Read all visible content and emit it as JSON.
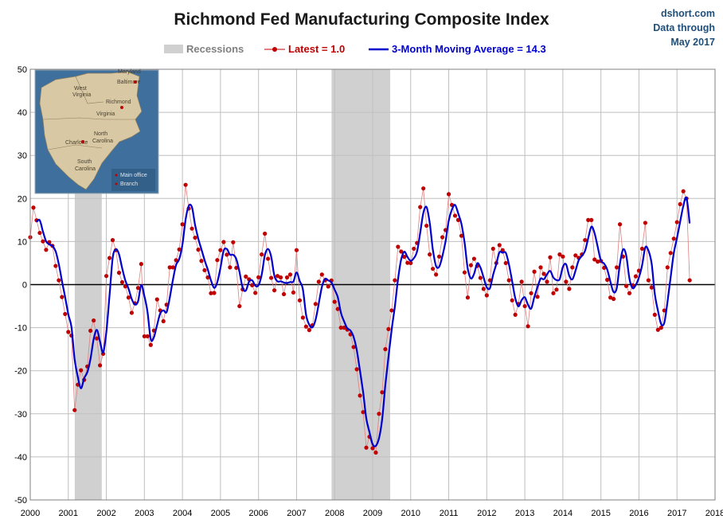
{
  "chart_data": {
    "type": "line",
    "title": "Richmond Fed Manufacturing Composite Index",
    "source": [
      "dshort.com",
      "Data through",
      "May 2017"
    ],
    "legend": {
      "recessions": "Recessions",
      "latest": "Latest = 1.0",
      "moving_average": "3-Month Moving Average = 14.3"
    },
    "xlim": [
      2000,
      2018
    ],
    "ylim": [
      -50,
      50
    ],
    "x_ticks": [
      "2000",
      "2001",
      "2002",
      "2003",
      "2004",
      "2005",
      "2006",
      "2007",
      "2008",
      "2009",
      "2010",
      "2011",
      "2012",
      "2013",
      "2014",
      "2015",
      "2016",
      "2017",
      "2018"
    ],
    "y_ticks": [
      "50",
      "40",
      "30",
      "20",
      "10",
      "0",
      "-10",
      "-20",
      "-30",
      "-40",
      "-50"
    ],
    "grid": true,
    "recessions": [
      [
        2001.17,
        2001.88
      ],
      [
        2007.92,
        2009.46
      ]
    ],
    "colors": {
      "latest": "#c00000",
      "moving_average": "#0000cc",
      "recession": "#d0d0d0",
      "zero_line": "#000000"
    },
    "anchors": [
      [
        2000.0,
        11
      ],
      [
        2000.08,
        18
      ],
      [
        2000.25,
        12
      ],
      [
        2000.42,
        8
      ],
      [
        2000.55,
        11
      ],
      [
        2000.65,
        5
      ],
      [
        2000.75,
        1
      ],
      [
        2000.9,
        -6
      ],
      [
        2001.0,
        -11
      ],
      [
        2001.1,
        -12
      ],
      [
        2001.17,
        -30
      ],
      [
        2001.3,
        -19
      ],
      [
        2001.45,
        -23
      ],
      [
        2001.55,
        -15
      ],
      [
        2001.62,
        -6
      ],
      [
        2001.7,
        -10
      ],
      [
        2001.8,
        -15
      ],
      [
        2001.88,
        -24
      ],
      [
        2002.0,
        2
      ],
      [
        2002.12,
        8
      ],
      [
        2002.2,
        12
      ],
      [
        2002.3,
        4
      ],
      [
        2002.38,
        1
      ],
      [
        2002.55,
        -1
      ],
      [
        2002.65,
        -7
      ],
      [
        2002.8,
        -3
      ],
      [
        2002.92,
        5
      ],
      [
        2003.0,
        -12
      ],
      [
        2003.1,
        -12
      ],
      [
        2003.2,
        -15
      ],
      [
        2003.35,
        -2
      ],
      [
        2003.45,
        -8
      ],
      [
        2003.55,
        -9
      ],
      [
        2003.65,
        4
      ],
      [
        2003.75,
        4
      ],
      [
        2003.9,
        7
      ],
      [
        2004.0,
        14
      ],
      [
        2004.1,
        25
      ],
      [
        2004.2,
        14
      ],
      [
        2004.3,
        12
      ],
      [
        2004.45,
        7
      ],
      [
        2004.55,
        4
      ],
      [
        2004.7,
        1
      ],
      [
        2004.8,
        -5
      ],
      [
        2004.92,
        6
      ],
      [
        2005.08,
        10
      ],
      [
        2005.25,
        4
      ],
      [
        2005.35,
        11
      ],
      [
        2005.5,
        -5
      ],
      [
        2005.65,
        2
      ],
      [
        2005.78,
        1
      ],
      [
        2005.92,
        -2
      ],
      [
        2006.05,
        4
      ],
      [
        2006.15,
        13
      ],
      [
        2006.25,
        6
      ],
      [
        2006.4,
        -2
      ],
      [
        2006.55,
        4
      ],
      [
        2006.65,
        -3
      ],
      [
        2006.8,
        4
      ],
      [
        2006.92,
        -2
      ],
      [
        2007.0,
        8
      ],
      [
        2007.1,
        -6
      ],
      [
        2007.3,
        -11
      ],
      [
        2007.45,
        -9
      ],
      [
        2007.55,
        0
      ],
      [
        2007.7,
        3
      ],
      [
        2007.8,
        -1
      ],
      [
        2007.92,
        1
      ],
      [
        2008.0,
        -4
      ],
      [
        2008.1,
        -6
      ],
      [
        2008.15,
        -10
      ],
      [
        2008.3,
        -10
      ],
      [
        2008.45,
        -12
      ],
      [
        2008.55,
        -17
      ],
      [
        2008.65,
        -25
      ],
      [
        2008.78,
        -31
      ],
      [
        2008.85,
        -40
      ],
      [
        2008.95,
        -33
      ],
      [
        2009.05,
        -43
      ],
      [
        2009.15,
        -31
      ],
      [
        2009.25,
        -25
      ],
      [
        2009.35,
        -13
      ],
      [
        2009.45,
        -9
      ],
      [
        2009.55,
        -3
      ],
      [
        2009.65,
        9
      ],
      [
        2009.8,
        7
      ],
      [
        2009.92,
        5
      ],
      [
        2010.0,
        5
      ],
      [
        2010.1,
        9
      ],
      [
        2010.2,
        10
      ],
      [
        2010.3,
        26
      ],
      [
        2010.4,
        15
      ],
      [
        2010.5,
        7
      ],
      [
        2010.6,
        3
      ],
      [
        2010.7,
        2
      ],
      [
        2010.8,
        11
      ],
      [
        2010.9,
        11
      ],
      [
        2011.0,
        21
      ],
      [
        2011.1,
        18
      ],
      [
        2011.2,
        15
      ],
      [
        2011.3,
        15
      ],
      [
        2011.4,
        4
      ],
      [
        2011.5,
        -3
      ],
      [
        2011.6,
        6
      ],
      [
        2011.7,
        6
      ],
      [
        2011.85,
        1
      ],
      [
        2011.95,
        -2
      ],
      [
        2012.05,
        -3
      ],
      [
        2012.15,
        9
      ],
      [
        2012.25,
        5
      ],
      [
        2012.35,
        10
      ],
      [
        2012.45,
        7
      ],
      [
        2012.55,
        3
      ],
      [
        2012.65,
        -3
      ],
      [
        2012.75,
        -7
      ],
      [
        2012.85,
        -4
      ],
      [
        2012.95,
        3
      ],
      [
        2013.05,
        -13
      ],
      [
        2013.15,
        -3
      ],
      [
        2013.25,
        3
      ],
      [
        2013.35,
        -4
      ],
      [
        2013.45,
        8
      ],
      [
        2013.55,
        -3
      ],
      [
        2013.65,
        8
      ],
      [
        2013.75,
        -2
      ],
      [
        2013.85,
        -1
      ],
      [
        2013.95,
        11
      ],
      [
        2014.05,
        2
      ],
      [
        2014.15,
        -2
      ],
      [
        2014.3,
        7
      ],
      [
        2014.45,
        6
      ],
      [
        2014.55,
        8
      ],
      [
        2014.65,
        15
      ],
      [
        2014.75,
        15
      ],
      [
        2014.85,
        4
      ],
      [
        2014.95,
        6
      ],
      [
        2015.05,
        5
      ],
      [
        2015.2,
        0
      ],
      [
        2015.3,
        -6
      ],
      [
        2015.4,
        2
      ],
      [
        2015.5,
        14
      ],
      [
        2015.6,
        5
      ],
      [
        2015.7,
        -3
      ],
      [
        2015.8,
        -1
      ],
      [
        2015.92,
        2
      ],
      [
        2016.05,
        4
      ],
      [
        2016.15,
        17
      ],
      [
        2016.25,
        1
      ],
      [
        2016.35,
        -1
      ],
      [
        2016.45,
        -10
      ],
      [
        2016.55,
        -11
      ],
      [
        2016.65,
        -8
      ],
      [
        2016.75,
        4
      ],
      [
        2016.85,
        8
      ],
      [
        2016.95,
        12
      ],
      [
        2017.05,
        17
      ],
      [
        2017.15,
        22
      ],
      [
        2017.25,
        20
      ],
      [
        2017.35,
        1
      ]
    ]
  }
}
